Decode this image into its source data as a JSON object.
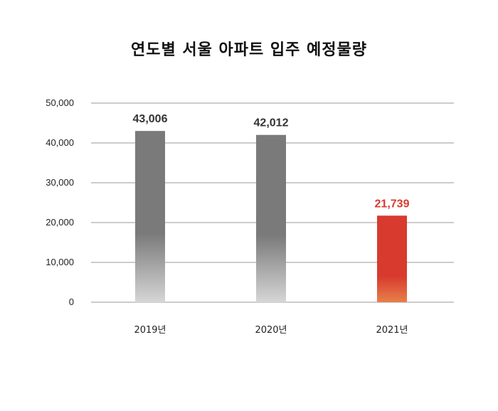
{
  "chart_data": {
    "type": "bar",
    "title": "연도별 서울 아파트 입주 예정물량",
    "categories": [
      "2019년",
      "2020년",
      "2021년"
    ],
    "values": [
      43006,
      42012,
      21739
    ],
    "value_labels": [
      "43,006",
      "42,012",
      "21,739"
    ],
    "ylim": [
      0,
      50000
    ],
    "y_ticks": [
      0,
      10000,
      20000,
      30000,
      40000,
      50000
    ],
    "y_tick_labels": [
      "0",
      "10,000",
      "20,000",
      "30,000",
      "40,000",
      "50,000"
    ],
    "grid": true,
    "legend": "none",
    "colors": {
      "bar_top": "#7a7a7a",
      "bar_bottom": "#d6d6d6",
      "highlight_top": "#d83a2e",
      "highlight_bottom": "#e8804a",
      "highlight_label": "#d83a2e",
      "label": "#333333",
      "grid": "#9a9a9a"
    },
    "highlight_index": 2
  }
}
